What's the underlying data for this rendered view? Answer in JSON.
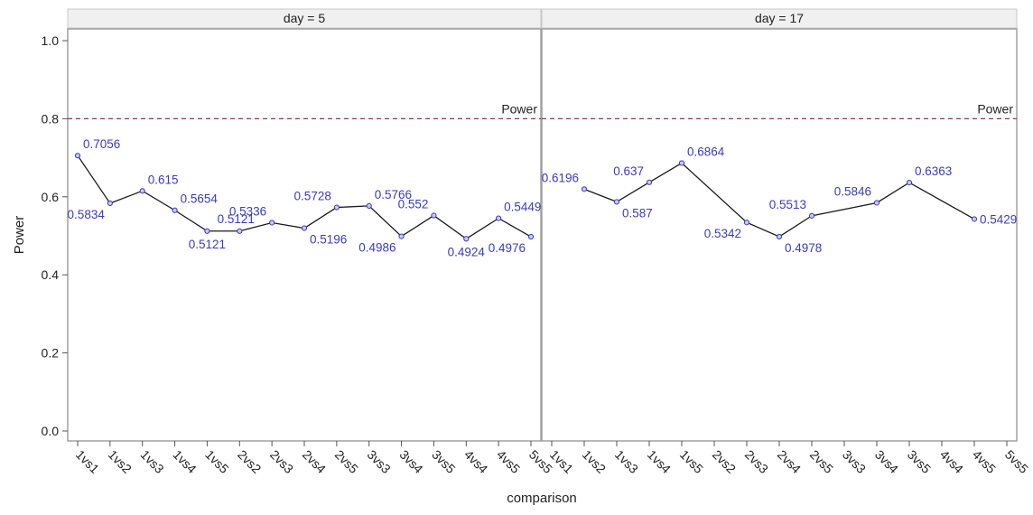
{
  "chart_data": {
    "type": "line",
    "ylabel": "Power",
    "xlabel": "comparison",
    "ylim": [
      0,
      1
    ],
    "yticks": [
      "0.0",
      "0.2",
      "0.4",
      "0.6",
      "0.8",
      "1.0"
    ],
    "ytick_values": [
      0,
      0.2,
      0.4,
      0.6,
      0.8,
      1.0
    ],
    "reference_line": {
      "value": 0.8,
      "label": "Power",
      "style": "dashed",
      "color": "#8b3a4a"
    },
    "grid": false,
    "colors": {
      "line": "#1a1a1a",
      "marker": "#3b3bbf",
      "label": "#3b3bbf",
      "panel_header_bg": "#f0f0f0",
      "frame": "#a0a0a0"
    },
    "categories": [
      "1vs1",
      "1vs2",
      "1vs3",
      "1vs4",
      "1vs5",
      "2vs2",
      "2vs3",
      "2vs4",
      "2vs5",
      "3vs3",
      "3vs4",
      "3vs5",
      "4vs4",
      "4vs5",
      "5vs5"
    ],
    "panels": [
      {
        "title": "day = 5",
        "points": [
          {
            "x": "1vs1",
            "y": 0.7056,
            "label": "0.7056",
            "pos": "ur"
          },
          {
            "x": "1vs2",
            "y": 0.5834,
            "label": "0.5834",
            "pos": "bl"
          },
          {
            "x": "1vs3",
            "y": 0.615,
            "label": "0.615",
            "pos": "ur"
          },
          {
            "x": "1vs4",
            "y": 0.5654,
            "label": "0.5654",
            "pos": "ur"
          },
          {
            "x": "1vs5",
            "y": 0.5121,
            "label": "0.5121",
            "pos": "b"
          },
          {
            "x": "2vs2",
            "y": 0.5121,
            "label": "0.5121",
            "pos": "u"
          },
          {
            "x": "2vs3",
            "y": 0.5336,
            "label": "0.5336",
            "pos": "ul"
          },
          {
            "x": "2vs4",
            "y": 0.5196,
            "label": "0.5196",
            "pos": "br"
          },
          {
            "x": "2vs5",
            "y": 0.5728,
            "label": "0.5728",
            "pos": "ul"
          },
          {
            "x": "3vs3",
            "y": 0.5766,
            "label": "0.5766",
            "pos": "ur"
          },
          {
            "x": "3vs4",
            "y": 0.4986,
            "label": "0.4986",
            "pos": "bl"
          },
          {
            "x": "3vs5",
            "y": 0.552,
            "label": "0.552",
            "pos": "ul"
          },
          {
            "x": "4vs4",
            "y": 0.4924,
            "label": "0.4924",
            "pos": "b"
          },
          {
            "x": "4vs5",
            "y": 0.5449,
            "label": "0.5449",
            "pos": "ur"
          },
          {
            "x": "5vs5",
            "y": 0.4976,
            "label": "0.4976",
            "pos": "bl"
          }
        ]
      },
      {
        "title": "day = 17",
        "points": [
          {
            "x": "1vs2",
            "y": 0.6196,
            "label": "0.6196",
            "pos": "ul"
          },
          {
            "x": "1vs3",
            "y": 0.587,
            "label": "0.587",
            "pos": "br"
          },
          {
            "x": "1vs4",
            "y": 0.637,
            "label": "0.637",
            "pos": "ul"
          },
          {
            "x": "1vs5",
            "y": 0.6864,
            "label": "0.6864",
            "pos": "ur"
          },
          {
            "x": "2vs3",
            "y": 0.5342,
            "label": "0.5342",
            "pos": "bl"
          },
          {
            "x": "2vs4",
            "y": 0.4978,
            "label": "0.4978",
            "pos": "br"
          },
          {
            "x": "2vs5",
            "y": 0.5513,
            "label": "0.5513",
            "pos": "ul"
          },
          {
            "x": "3vs4",
            "y": 0.5846,
            "label": "0.5846",
            "pos": "ul"
          },
          {
            "x": "3vs5",
            "y": 0.6363,
            "label": "0.6363",
            "pos": "ur"
          },
          {
            "x": "4vs5",
            "y": 0.5429,
            "label": "0.5429",
            "pos": "r"
          }
        ]
      }
    ]
  }
}
